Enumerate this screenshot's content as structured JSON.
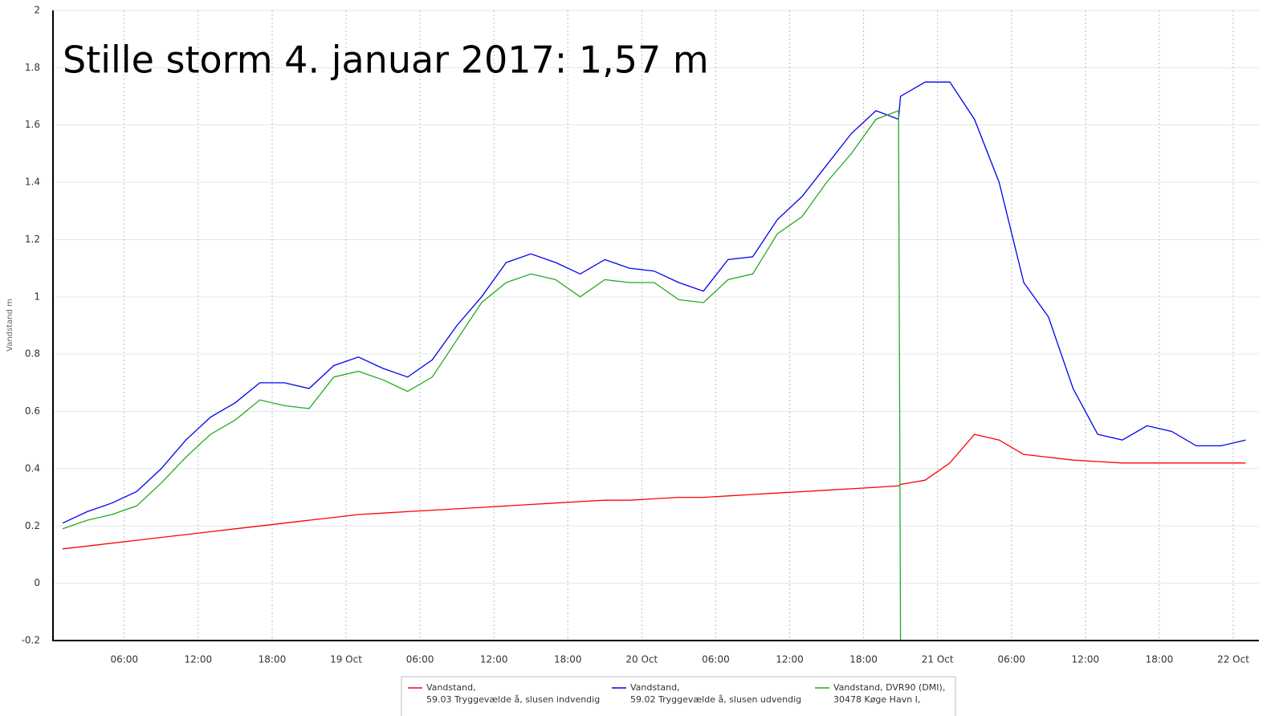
{
  "chart_data": {
    "type": "line",
    "annotation": "Stille storm 4. januar 2017: 1,57 m",
    "ylabel": "Vandstand m",
    "xlim": [
      "18 Oct 00:13",
      "22 Oct 02:05"
    ],
    "ylim": [
      -0.2,
      2
    ],
    "yticks": [
      -0.2,
      0,
      0.2,
      0.4,
      0.6,
      0.8,
      1,
      1.2,
      1.4,
      1.6,
      1.8,
      2
    ],
    "xticks": [
      {
        "value": "18 Oct 06:00",
        "label": "06:00"
      },
      {
        "value": "18 Oct 12:00",
        "label": "12:00"
      },
      {
        "value": "18 Oct 18:00",
        "label": "18:00"
      },
      {
        "value": "19 Oct 00:00",
        "label": "19 Oct"
      },
      {
        "value": "19 Oct 06:00",
        "label": "06:00"
      },
      {
        "value": "19 Oct 12:00",
        "label": "12:00"
      },
      {
        "value": "19 Oct 18:00",
        "label": "18:00"
      },
      {
        "value": "20 Oct 00:00",
        "label": "20 Oct"
      },
      {
        "value": "20 Oct 06:00",
        "label": "06:00"
      },
      {
        "value": "20 Oct 12:00",
        "label": "12:00"
      },
      {
        "value": "20 Oct 18:00",
        "label": "18:00"
      },
      {
        "value": "21 Oct 00:00",
        "label": "21 Oct"
      },
      {
        "value": "21 Oct 06:00",
        "label": "06:00"
      },
      {
        "value": "21 Oct 12:00",
        "label": "12:00"
      },
      {
        "value": "21 Oct 18:00",
        "label": "18:00"
      },
      {
        "value": "22 Oct 00:00",
        "label": "22 Oct"
      }
    ],
    "grid": true,
    "x": [
      "18 Oct 01:00",
      "18 Oct 03:00",
      "18 Oct 05:00",
      "18 Oct 07:00",
      "18 Oct 09:00",
      "18 Oct 11:00",
      "18 Oct 13:00",
      "18 Oct 15:00",
      "18 Oct 17:00",
      "18 Oct 19:00",
      "18 Oct 21:00",
      "18 Oct 23:00",
      "19 Oct 01:00",
      "19 Oct 03:00",
      "19 Oct 05:00",
      "19 Oct 07:00",
      "19 Oct 09:00",
      "19 Oct 11:00",
      "19 Oct 13:00",
      "19 Oct 15:00",
      "19 Oct 17:00",
      "19 Oct 19:00",
      "19 Oct 21:00",
      "19 Oct 23:00",
      "20 Oct 01:00",
      "20 Oct 03:00",
      "20 Oct 05:00",
      "20 Oct 07:00",
      "20 Oct 09:00",
      "20 Oct 11:00",
      "20 Oct 13:00",
      "20 Oct 15:00",
      "20 Oct 17:00",
      "20 Oct 19:00",
      "20 Oct 20:50",
      "20 Oct 21:00",
      "20 Oct 23:00",
      "21 Oct 01:00",
      "21 Oct 03:00",
      "21 Oct 05:00",
      "21 Oct 07:00",
      "21 Oct 09:00",
      "21 Oct 11:00",
      "21 Oct 13:00",
      "21 Oct 15:00",
      "21 Oct 17:00",
      "21 Oct 19:00",
      "21 Oct 21:00",
      "21 Oct 23:00",
      "22 Oct 01:00"
    ],
    "series": [
      {
        "name": [
          "Vandstand,",
          "59.03 Tryggevælde å, slusen indvendig"
        ],
        "color": "#ff0000",
        "values": [
          0.12,
          0.13,
          0.14,
          0.15,
          0.16,
          0.17,
          0.18,
          0.19,
          0.2,
          0.21,
          0.22,
          0.23,
          0.24,
          0.245,
          0.25,
          0.255,
          0.26,
          0.265,
          0.27,
          0.275,
          0.28,
          0.285,
          0.29,
          0.29,
          0.295,
          0.3,
          0.3,
          0.305,
          0.31,
          0.315,
          0.32,
          0.325,
          0.33,
          0.335,
          0.34,
          0.345,
          0.36,
          0.42,
          0.52,
          0.5,
          0.45,
          0.44,
          0.43,
          0.425,
          0.42,
          0.42,
          0.42,
          0.42,
          0.42,
          0.42
        ]
      },
      {
        "name": [
          "Vandstand,",
          "59.02 Tryggevælde å, slusen udvendig"
        ],
        "color": "#0000ee",
        "values": [
          0.21,
          0.25,
          0.28,
          0.32,
          0.4,
          0.5,
          0.58,
          0.63,
          0.7,
          0.7,
          0.68,
          0.76,
          0.79,
          0.75,
          0.72,
          0.78,
          0.9,
          1.0,
          1.12,
          1.15,
          1.12,
          1.08,
          1.13,
          1.1,
          1.09,
          1.05,
          1.02,
          1.13,
          1.14,
          1.27,
          1.35,
          1.46,
          1.57,
          1.65,
          1.62,
          1.7,
          1.75,
          1.75,
          1.62,
          1.4,
          1.05,
          0.93,
          0.68,
          0.52,
          0.5,
          0.55,
          0.53,
          0.48,
          0.48,
          0.5
        ]
      },
      {
        "name": [
          "Vandstand, DVR90 (DMI),",
          "30478 Køge Havn I,"
        ],
        "color": "#22aa22",
        "values": [
          0.19,
          0.22,
          0.24,
          0.27,
          0.35,
          0.44,
          0.52,
          0.57,
          0.64,
          0.62,
          0.61,
          0.72,
          0.74,
          0.71,
          0.67,
          0.72,
          0.85,
          0.98,
          1.05,
          1.08,
          1.06,
          1.0,
          1.06,
          1.05,
          1.05,
          0.99,
          0.98,
          1.06,
          1.08,
          1.22,
          1.28,
          1.4,
          1.5,
          1.62,
          1.65,
          -0.2,
          null,
          null,
          null,
          null,
          null,
          null,
          null,
          null,
          null,
          null,
          null,
          null,
          null,
          null
        ]
      }
    ]
  }
}
